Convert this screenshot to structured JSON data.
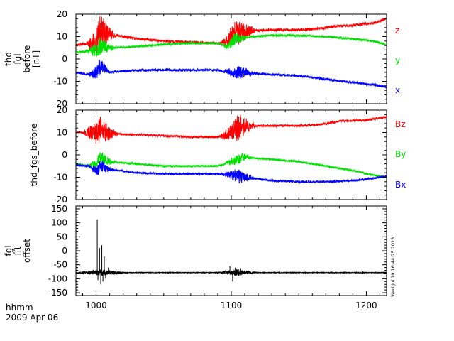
{
  "colors": {
    "red": "#ff0000",
    "green": "#00e000",
    "blue": "#0000ff",
    "black": "#000000",
    "background": "#ffffff"
  },
  "footer": {
    "xunit": "hhmm",
    "date": "2009 Apr 06"
  },
  "timestamp": "Wed Jul 10 16:44:25 2013",
  "chart_data": [
    {
      "type": "line",
      "panel": "top",
      "ylabel_lines": [
        "thd",
        "fgl",
        "before",
        "[nT]"
      ],
      "x_ticks": [
        1000,
        1100,
        1200
      ],
      "xlim": [
        985,
        1215
      ],
      "ylim": [
        -20,
        20
      ],
      "y_ticks": [
        -20,
        -10,
        0,
        10,
        20
      ],
      "x_tick_labels_shown": false,
      "series": [
        {
          "name": "z",
          "color": "#ff0000",
          "seed": 11,
          "points": [
            [
              985,
              6.2
            ],
            [
              995,
              7
            ],
            [
              1000,
              7.5
            ],
            [
              1003,
              13
            ],
            [
              1010,
              11
            ],
            [
              1030,
              9
            ],
            [
              1050,
              8
            ],
            [
              1070,
              7.5
            ],
            [
              1090,
              7
            ],
            [
              1098,
              8
            ],
            [
              1100,
              11
            ],
            [
              1105,
              12
            ],
            [
              1115,
              12.5
            ],
            [
              1130,
              13
            ],
            [
              1150,
              13
            ],
            [
              1165,
              13.5
            ],
            [
              1175,
              14.5
            ],
            [
              1190,
              15
            ],
            [
              1205,
              16
            ],
            [
              1215,
              18
            ]
          ],
          "bursts": [
            {
              "center": 1003,
              "width": 12,
              "amp": 7
            },
            {
              "center": 1105,
              "width": 14,
              "amp": 6
            }
          ],
          "noise": 0.6
        },
        {
          "name": "y",
          "color": "#00e000",
          "seed": 23,
          "points": [
            [
              985,
              3
            ],
            [
              995,
              3.5
            ],
            [
              1000,
              4
            ],
            [
              1003,
              6
            ],
            [
              1010,
              5
            ],
            [
              1030,
              5.5
            ],
            [
              1050,
              6.5
            ],
            [
              1070,
              7
            ],
            [
              1090,
              7
            ],
            [
              1097,
              5.5
            ],
            [
              1103,
              9
            ],
            [
              1115,
              10
            ],
            [
              1130,
              10.5
            ],
            [
              1150,
              10.5
            ],
            [
              1170,
              10
            ],
            [
              1190,
              9
            ],
            [
              1205,
              8
            ],
            [
              1215,
              6.5
            ]
          ],
          "bursts": [
            {
              "center": 1003,
              "width": 12,
              "amp": 4
            },
            {
              "center": 1103,
              "width": 10,
              "amp": 3
            }
          ],
          "noise": 0.5
        },
        {
          "name": "x",
          "color": "#0000ff",
          "seed": 37,
          "points": [
            [
              985,
              -6
            ],
            [
              995,
              -7
            ],
            [
              1000,
              -6
            ],
            [
              1004,
              -3
            ],
            [
              1010,
              -6
            ],
            [
              1030,
              -5
            ],
            [
              1050,
              -5
            ],
            [
              1070,
              -5
            ],
            [
              1090,
              -5
            ],
            [
              1100,
              -6
            ],
            [
              1110,
              -6
            ],
            [
              1130,
              -7
            ],
            [
              1150,
              -7.5
            ],
            [
              1170,
              -9
            ],
            [
              1190,
              -10.5
            ],
            [
              1205,
              -11.5
            ],
            [
              1215,
              -12.5
            ]
          ],
          "bursts": [
            {
              "center": 1002,
              "width": 8,
              "amp": 4
            },
            {
              "center": 1105,
              "width": 14,
              "amp": 3
            }
          ],
          "noise": 0.55
        }
      ]
    },
    {
      "type": "line",
      "panel": "middle",
      "ylabel_lines": [
        "thd_fgs_before"
      ],
      "x_ticks": [
        1000,
        1100,
        1200
      ],
      "xlim": [
        985,
        1215
      ],
      "ylim": [
        -20,
        20
      ],
      "y_ticks": [
        -20,
        -10,
        0,
        10,
        20
      ],
      "x_tick_labels_shown": false,
      "series": [
        {
          "name": "Bz",
          "color": "#ff0000",
          "seed": 51,
          "points": [
            [
              985,
              10
            ],
            [
              995,
              10
            ],
            [
              1000,
              10
            ],
            [
              1003,
              12
            ],
            [
              1010,
              9.5
            ],
            [
              1030,
              9
            ],
            [
              1050,
              8.5
            ],
            [
              1070,
              8
            ],
            [
              1090,
              8
            ],
            [
              1097,
              9
            ],
            [
              1103,
              12
            ],
            [
              1115,
              13
            ],
            [
              1130,
              13
            ],
            [
              1150,
              13
            ],
            [
              1165,
              13.5
            ],
            [
              1180,
              15
            ],
            [
              1200,
              15.5
            ],
            [
              1215,
              17
            ]
          ],
          "bursts": [
            {
              "center": 1003,
              "width": 14,
              "amp": 6
            },
            {
              "center": 1105,
              "width": 14,
              "amp": 6
            }
          ],
          "noise": 0.5
        },
        {
          "name": "By",
          "color": "#00e000",
          "seed": 63,
          "points": [
            [
              985,
              -4
            ],
            [
              995,
              -5
            ],
            [
              1000,
              -4
            ],
            [
              1003,
              -1
            ],
            [
              1010,
              -3
            ],
            [
              1030,
              -4
            ],
            [
              1050,
              -5
            ],
            [
              1070,
              -5
            ],
            [
              1090,
              -5
            ],
            [
              1100,
              -3
            ],
            [
              1110,
              -1
            ],
            [
              1130,
              -2
            ],
            [
              1150,
              -3
            ],
            [
              1170,
              -5
            ],
            [
              1190,
              -7
            ],
            [
              1205,
              -9
            ],
            [
              1215,
              -10
            ]
          ],
          "bursts": [
            {
              "center": 1003,
              "width": 12,
              "amp": 3
            },
            {
              "center": 1105,
              "width": 12,
              "amp": 2.5
            }
          ],
          "noise": 0.45
        },
        {
          "name": "Bx",
          "color": "#0000ff",
          "seed": 79,
          "points": [
            [
              985,
              -4.5
            ],
            [
              995,
              -5
            ],
            [
              1000,
              -7
            ],
            [
              1004,
              -5
            ],
            [
              1010,
              -6.5
            ],
            [
              1030,
              -8
            ],
            [
              1050,
              -8.5
            ],
            [
              1070,
              -8.5
            ],
            [
              1090,
              -8.5
            ],
            [
              1100,
              -9
            ],
            [
              1110,
              -10
            ],
            [
              1130,
              -11.5
            ],
            [
              1150,
              -12
            ],
            [
              1170,
              -12
            ],
            [
              1190,
              -11.5
            ],
            [
              1205,
              -10.5
            ],
            [
              1215,
              -9.5
            ]
          ],
          "bursts": [
            {
              "center": 1003,
              "width": 10,
              "amp": 3
            },
            {
              "center": 1105,
              "width": 14,
              "amp": 3
            }
          ],
          "noise": 0.45
        }
      ]
    },
    {
      "type": "line",
      "panel": "bottom",
      "ylabel_lines": [
        "fgl",
        "fft",
        "offset"
      ],
      "x_ticks": [
        1000,
        1100,
        1200
      ],
      "x_tick_labels": [
        "1000",
        "1100",
        "1200"
      ],
      "xlim": [
        985,
        1215
      ],
      "ylim": [
        -160,
        160
      ],
      "y_ticks": [
        -150,
        -100,
        -50,
        0,
        50,
        100,
        150
      ],
      "x_tick_labels_shown": true,
      "series": [
        {
          "name": "offset",
          "color": "#000000",
          "seed": 97,
          "points": [
            [
              985,
              -78
            ],
            [
              1215,
              -78
            ]
          ],
          "spikes": [
            [
              1000.8,
              112
            ],
            [
              1001.3,
              -105
            ],
            [
              1002.5,
              10
            ],
            [
              1003.4,
              -120
            ],
            [
              1004.2,
              20
            ],
            [
              1005,
              -110
            ],
            [
              1006,
              -20
            ],
            [
              1007,
              -100
            ],
            [
              1009,
              -60
            ],
            [
              1099,
              -55
            ],
            [
              1101,
              -110
            ],
            [
              1103,
              -60
            ],
            [
              1105,
              -100
            ],
            [
              1107,
              -62
            ]
          ],
          "bursts": [
            {
              "center": 1004,
              "width": 20,
              "amp": 12
            },
            {
              "center": 1104,
              "width": 16,
              "amp": 12
            }
          ],
          "noise": 1.2
        }
      ]
    }
  ]
}
